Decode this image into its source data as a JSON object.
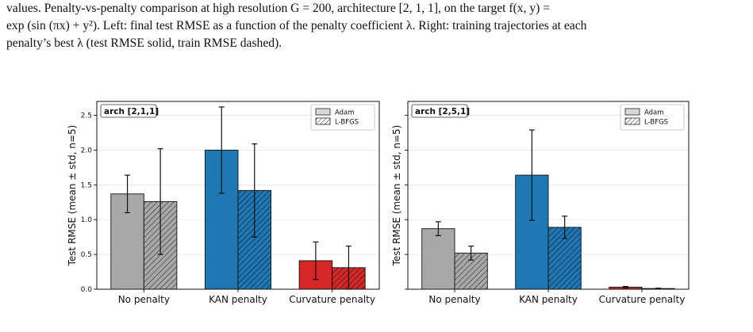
{
  "caption": {
    "line1": "values.  Penalty-vs-penalty comparison at high resolution G = 200, architecture [2, 1, 1], on the target f(x, y) =",
    "line2": "exp (sin (πx) + y²).  Left: final test RMSE as a function of the penalty coefficient λ.  Right: training trajectories at each",
    "line3": "penalty’s best λ (test RMSE solid, train RMSE dashed)."
  },
  "chart_data": [
    {
      "type": "bar",
      "panel_label": "arch [2,1,1]",
      "ylabel": "Test RMSE  (mean ± std, n=5)",
      "categories": [
        "No penalty",
        "KAN penalty",
        "Curvature penalty"
      ],
      "ylim": [
        0,
        2.7
      ],
      "yticks": [
        "0.0",
        "0.5",
        "1.0",
        "1.5",
        "2.0",
        "2.5"
      ],
      "ytick_values": [
        0,
        0.5,
        1.0,
        1.5,
        2.0,
        2.5
      ],
      "grid": "horizontal",
      "legend_position": "top-right",
      "series": [
        {
          "name": "Adam",
          "values": [
            1.37,
            2.0,
            0.41
          ],
          "err": [
            0.27,
            0.62,
            0.27
          ]
        },
        {
          "name": "L-BFGS",
          "values": [
            1.26,
            1.42,
            0.31
          ],
          "err": [
            0.76,
            0.67,
            0.31
          ]
        }
      ],
      "category_colors": [
        "#a8a8a8",
        "#1f77b4",
        "#d62728"
      ]
    },
    {
      "type": "bar",
      "panel_label": "arch [2,5,1]",
      "ylabel": "Test RMSE  (mean ± std, n=5)",
      "categories": [
        "No penalty",
        "KAN penalty",
        "Curvature penalty"
      ],
      "ylim": [
        0,
        2.7
      ],
      "yticks": [],
      "ytick_values": [
        0,
        0.5,
        1.0,
        1.5,
        2.0,
        2.5
      ],
      "grid": "horizontal",
      "legend_position": "top-right",
      "series": [
        {
          "name": "Adam",
          "values": [
            0.87,
            1.64,
            0.03
          ],
          "err": [
            0.1,
            0.65,
            0.01
          ]
        },
        {
          "name": "L-BFGS",
          "values": [
            0.52,
            0.89,
            0.01
          ],
          "err": [
            0.1,
            0.16,
            0.005
          ]
        }
      ],
      "category_colors": [
        "#a8a8a8",
        "#1f77b4",
        "#d62728"
      ]
    }
  ]
}
